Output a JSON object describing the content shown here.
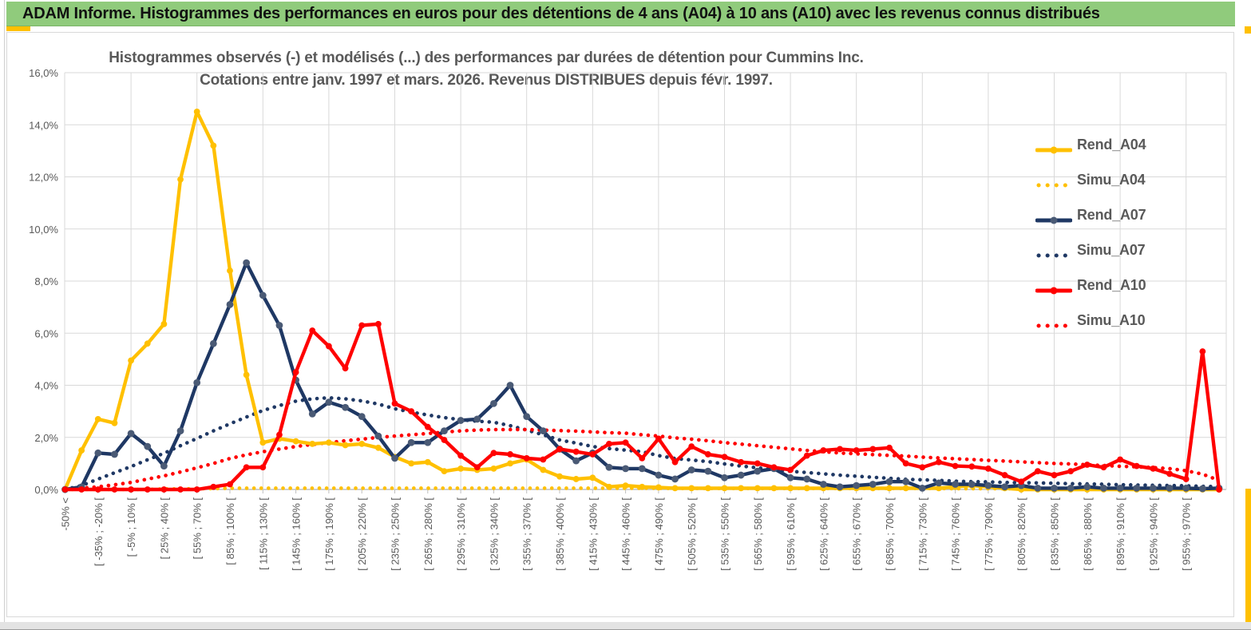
{
  "header": {
    "title": "ADAM Informe. Histogrammes des performances en euros pour des détentions de 4 ans (A04) à 10 ans (A10) avec les revenus connus distribués"
  },
  "chart": {
    "title_line1": "Histogrammes observés (-) et modélisés (...) des performances par durées de détention pour Cummins Inc.",
    "title_line2": "Cotations entre janv. 1997 et mars. 2026. Revenus DISTRIBUES depuis févr. 1997.",
    "colors": {
      "a04": "#FFC000",
      "a07": "#1F3864",
      "a07_marker": "#4A5A75",
      "a10": "#FF0000",
      "gridline": "#D9D9D9",
      "axis_line": "#BFBFBF",
      "axis_text": "#595959",
      "header_green": "#90CB7C",
      "accent_yellow": "#FFC000"
    },
    "chart_data": {
      "type": "line",
      "title": "Histogrammes observés (-) et modélisés (...) des performances par durées de détention pour Cummins Inc. Cotations entre janv. 1997 et mars. 2026. Revenus DISTRIBUES depuis févr. 1997.",
      "ylabel": "",
      "xlabel": "",
      "ylim": [
        0,
        16
      ],
      "y_tick_step_pct": 2,
      "y_tick_labels": [
        "0,0%",
        "2,0%",
        "4,0%",
        "6,0%",
        "8,0%",
        "10,0%",
        "12,0%",
        "14,0%",
        "16,0%"
      ],
      "grid": true,
      "legend_position": "right",
      "n_points": 71,
      "bin_width_pct": 15,
      "x_labels_every_other_bin": true,
      "x_tick_labels": [
        "-50% <",
        "[ -35% ; -20% [",
        "[ -5% ; 10% [",
        "[ 25% ; 40% [",
        "[ 55% ; 70% [",
        "[ 85% ; 100% [",
        "[ 115% ; 130% [",
        "[ 145% ; 160% [",
        "[ 175% ; 190% [",
        "[ 205% ; 220% [",
        "[ 235% ; 250% [",
        "[ 265% ; 280% [",
        "[ 295% ; 310% [",
        "[ 325% ; 340% [",
        "[ 355% ; 370% [",
        "[ 385% ; 400% [",
        "[ 415% ; 430% [",
        "[ 445% ; 460% [",
        "[ 475% ; 490% [",
        "[ 505% ; 520% [",
        "[ 535% ; 550% [",
        "[ 565% ; 580% [",
        "[ 595% ; 610% [",
        "[ 625% ; 640% [",
        "[ 655% ; 670% [",
        "[ 685% ; 700% [",
        "[ 715% ; 730% [",
        "[ 745% ; 760% [",
        "[ 775% ; 790% [",
        "[ 805% ; 820% [",
        "[ 835% ; 850% [",
        "[ 865% ; 880% [",
        "[ 895% ; 910% [",
        "[ 925% ; 940% [",
        "[ 955% ; 970% ["
      ],
      "series": [
        {
          "name": "Rend_A04",
          "color": "#FFC000",
          "style": "solid",
          "markers": true,
          "values": [
            0,
            1.5,
            2.7,
            2.55,
            4.95,
            5.6,
            6.35,
            11.9,
            14.5,
            13.2,
            8.4,
            4.4,
            1.8,
            1.95,
            1.85,
            1.75,
            1.8,
            1.7,
            1.75,
            1.6,
            1.25,
            1.0,
            1.05,
            0.7,
            0.8,
            0.75,
            0.8,
            1.0,
            1.15,
            0.75,
            0.5,
            0.4,
            0.45,
            0.1,
            0.15,
            0.1,
            0.08,
            0.05,
            0.05,
            0.05,
            0.05,
            0.05,
            0.05,
            0.05,
            0.05,
            0.05,
            0.05,
            0.05,
            0.05,
            0.05,
            0.05,
            0.05,
            0.05,
            0.05,
            0.1,
            0.15,
            0.1,
            0.05,
            0,
            0,
            0,
            0,
            0,
            0,
            0,
            0,
            0,
            0,
            0,
            0,
            0
          ]
        },
        {
          "name": "Simu_A04",
          "color": "#FFC000",
          "style": "dotted",
          "markers": false,
          "values": [
            0,
            0,
            0,
            0,
            0,
            0,
            0.02,
            0.02,
            0.03,
            0.03,
            0.05,
            0.05,
            0.05,
            0.05,
            0.05,
            0.05,
            0.05,
            0.05,
            0.05,
            0.05,
            0.05,
            0.05,
            0.05,
            0.05,
            0.05,
            0.05,
            0.05,
            0.05,
            0.05,
            0.05,
            0.05,
            0.05,
            0.05,
            0.05,
            0.05,
            0.05,
            0.05,
            0.04,
            0.04,
            0.04,
            0.04,
            0.04,
            0.04,
            0.04,
            0.04,
            0.04,
            0.04,
            0.04,
            0.04,
            0.04,
            0.04,
            0.04,
            0.04,
            0.04,
            0.03,
            0.03,
            0.03,
            0.03,
            0.03,
            0.03,
            0.03,
            0.03,
            0.03,
            0.03,
            0.03,
            0.03,
            0.03,
            0.03,
            0.02,
            0.02,
            0.02
          ]
        },
        {
          "name": "Rend_A07",
          "color": "#1F3864",
          "style": "solid",
          "markers": true,
          "values": [
            0,
            0.1,
            1.4,
            1.35,
            2.15,
            1.65,
            0.9,
            2.25,
            4.1,
            5.6,
            7.1,
            8.7,
            7.45,
            6.3,
            4.2,
            2.9,
            3.35,
            3.15,
            2.8,
            2.05,
            1.2,
            1.8,
            1.8,
            2.25,
            2.65,
            2.7,
            3.3,
            4.0,
            2.8,
            2.25,
            1.55,
            1.1,
            1.4,
            0.85,
            0.8,
            0.8,
            0.55,
            0.4,
            0.75,
            0.7,
            0.45,
            0.55,
            0.7,
            0.8,
            0.45,
            0.4,
            0.2,
            0.1,
            0.15,
            0.2,
            0.3,
            0.3,
            0.05,
            0.25,
            0.2,
            0.2,
            0.15,
            0.1,
            0.15,
            0.05,
            0.05,
            0.05,
            0.1,
            0.05,
            0.05,
            0.05,
            0.05,
            0.05,
            0.05,
            0.03,
            0.05
          ]
        },
        {
          "name": "Simu_A07",
          "color": "#1F3864",
          "style": "dotted",
          "markers": false,
          "values": [
            0,
            0.15,
            0.4,
            0.64,
            0.88,
            1.14,
            1.39,
            1.68,
            1.96,
            2.25,
            2.52,
            2.78,
            3.03,
            3.22,
            3.39,
            3.48,
            3.52,
            3.48,
            3.4,
            3.28,
            3.1,
            2.97,
            2.86,
            2.76,
            2.68,
            2.62,
            2.58,
            2.45,
            2.28,
            2.1,
            1.9,
            1.78,
            1.65,
            1.57,
            1.51,
            1.45,
            1.3,
            1.19,
            1.13,
            1.07,
            0.98,
            0.9,
            0.83,
            0.76,
            0.7,
            0.65,
            0.6,
            0.55,
            0.51,
            0.47,
            0.43,
            0.39,
            0.37,
            0.35,
            0.32,
            0.3,
            0.29,
            0.27,
            0.26,
            0.25,
            0.24,
            0.22,
            0.21,
            0.2,
            0.18,
            0.17,
            0.16,
            0.15,
            0.14,
            0.12,
            0.11
          ]
        },
        {
          "name": "Rend_A10",
          "color": "#FF0000",
          "style": "solid",
          "markers": true,
          "values": [
            0,
            0,
            0,
            0,
            0,
            0,
            0,
            0,
            0,
            0.1,
            0.2,
            0.85,
            0.85,
            2.1,
            4.5,
            6.1,
            5.5,
            4.65,
            6.3,
            6.35,
            3.3,
            3.0,
            2.4,
            1.9,
            1.3,
            0.85,
            1.4,
            1.35,
            1.2,
            1.15,
            1.55,
            1.45,
            1.35,
            1.75,
            1.8,
            1.2,
            1.95,
            1.05,
            1.65,
            1.35,
            1.25,
            1.05,
            1.0,
            0.85,
            0.75,
            1.3,
            1.5,
            1.55,
            1.5,
            1.55,
            1.6,
            1.0,
            0.85,
            1.05,
            0.9,
            0.88,
            0.8,
            0.55,
            0.3,
            0.7,
            0.55,
            0.7,
            0.95,
            0.85,
            1.15,
            0.9,
            0.8,
            0.6,
            0.4,
            5.3,
            0
          ]
        },
        {
          "name": "Simu_A10",
          "color": "#FF0000",
          "style": "dotted",
          "markers": false,
          "values": [
            0,
            0.05,
            0.1,
            0.18,
            0.27,
            0.4,
            0.52,
            0.67,
            0.83,
            1.0,
            1.19,
            1.33,
            1.45,
            1.55,
            1.65,
            1.73,
            1.8,
            1.87,
            1.93,
            2.0,
            2.05,
            2.1,
            2.15,
            2.2,
            2.25,
            2.28,
            2.3,
            2.3,
            2.3,
            2.28,
            2.26,
            2.24,
            2.21,
            2.18,
            2.16,
            2.1,
            2.05,
            1.98,
            1.93,
            1.87,
            1.8,
            1.74,
            1.68,
            1.62,
            1.56,
            1.5,
            1.45,
            1.4,
            1.37,
            1.34,
            1.31,
            1.28,
            1.24,
            1.21,
            1.18,
            1.15,
            1.12,
            1.09,
            1.06,
            1.03,
            1.0,
            0.98,
            0.95,
            0.92,
            0.89,
            0.87,
            0.84,
            0.8,
            0.72,
            0.59,
            0.35
          ]
        }
      ]
    },
    "legend": [
      {
        "label": "Rend_A04",
        "color": "#FFC000",
        "style": "solid"
      },
      {
        "label": "Simu_A04",
        "color": "#FFC000",
        "style": "dotted"
      },
      {
        "label": "Rend_A07",
        "color": "#1F3864",
        "style": "solid",
        "marker_color": "#4A5A75"
      },
      {
        "label": "Simu_A07",
        "color": "#1F3864",
        "style": "dotted"
      },
      {
        "label": "Rend_A10",
        "color": "#FF0000",
        "style": "solid"
      },
      {
        "label": "Simu_A10",
        "color": "#FF0000",
        "style": "dotted"
      }
    ]
  }
}
